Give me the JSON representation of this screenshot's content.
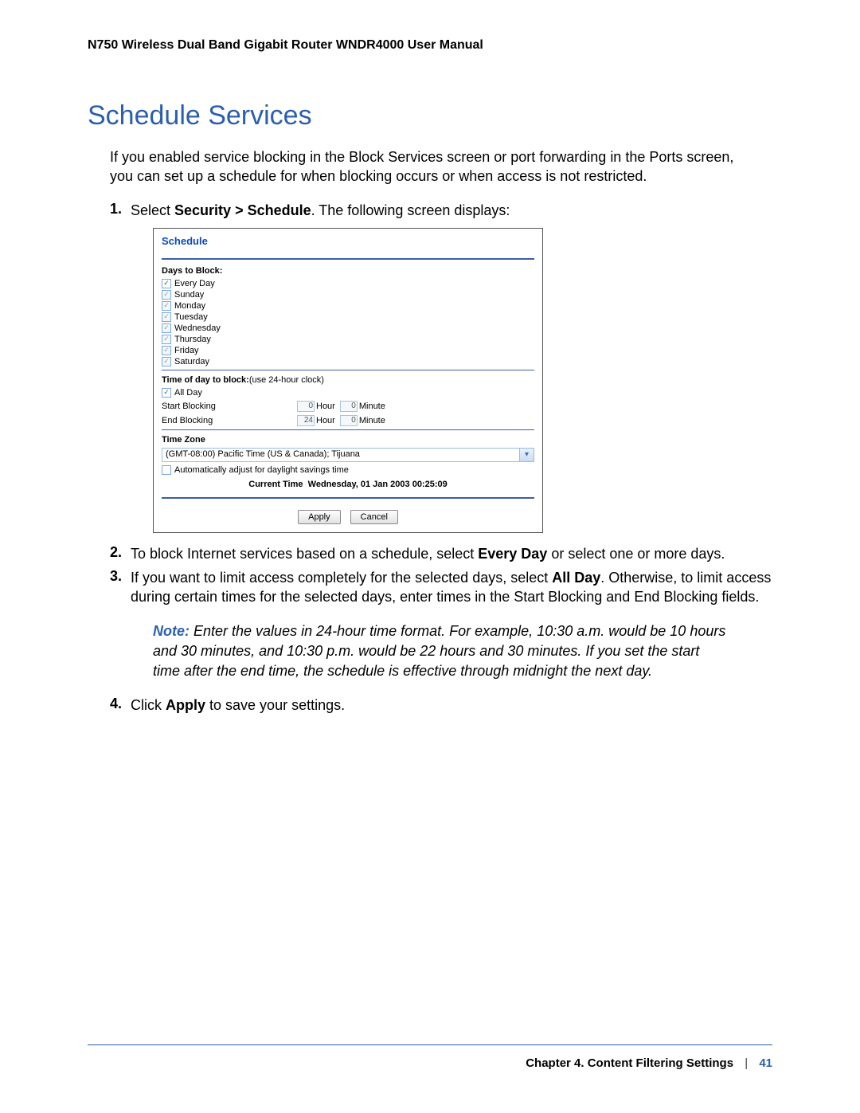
{
  "doc_header": "N750 Wireless Dual Band Gigabit Router WNDR4000 User Manual",
  "section_title": "Schedule Services",
  "intro": "If you enabled service blocking in the Block Services screen or port forwarding in the Ports screen, you can set up a schedule for when blocking occurs or when access is not restricted.",
  "steps": {
    "s1_pre": "Select ",
    "s1_bold": "Security > Schedule",
    "s1_post": ". The following screen displays:",
    "s2_pre": "To block Internet services based on a schedule, select ",
    "s2_bold": "Every Day",
    "s2_post": " or select one or more days.",
    "s3_pre": "If you want to limit access completely for the selected days, select ",
    "s3_bold": "All Day",
    "s3_post": ". Otherwise, to limit access during certain times for the selected days, enter times in the Start Blocking and End Blocking fields.",
    "s4_pre": "Click ",
    "s4_bold": "Apply",
    "s4_post": " to save your settings."
  },
  "note": {
    "label": "Note:",
    "text": "  Enter the values in 24-hour time format. For example, 10:30 a.m. would be 10 hours and 30 minutes, and 10:30 p.m. would be 22 hours and 30 minutes. If you set the start time after the end time, the schedule is effective through midnight the next day."
  },
  "screenshot": {
    "title": "Schedule",
    "days_label": "Days to Block:",
    "days": [
      {
        "label": "Every Day",
        "checked": true,
        "dim": false
      },
      {
        "label": "Sunday",
        "checked": true,
        "dim": true
      },
      {
        "label": "Monday",
        "checked": true,
        "dim": true
      },
      {
        "label": "Tuesday",
        "checked": true,
        "dim": true
      },
      {
        "label": "Wednesday",
        "checked": true,
        "dim": true
      },
      {
        "label": "Thursday",
        "checked": true,
        "dim": true
      },
      {
        "label": "Friday",
        "checked": true,
        "dim": true
      },
      {
        "label": "Saturday",
        "checked": true,
        "dim": true
      }
    ],
    "time_label": "Time of day to block:",
    "time_label_suffix": "(use 24-hour clock)",
    "all_day_label": "All Day",
    "start_label": "Start Blocking",
    "end_label": "End Blocking",
    "hour_label": "Hour",
    "minute_label": "Minute",
    "start_hour": "0",
    "start_min": "0",
    "end_hour": "24",
    "end_min": "0",
    "tz_label": "Time Zone",
    "tz_value": "(GMT-08:00) Pacific Time (US & Canada); Tijuana",
    "dst_label": "Automatically adjust for daylight savings time",
    "current_time_label": "Current Time",
    "current_time_value": "Wednesday, 01 Jan 2003 00:25:09",
    "apply_btn": "Apply",
    "cancel_btn": "Cancel"
  },
  "footer": {
    "chapter": "Chapter 4.  Content Filtering Settings",
    "page": "41"
  },
  "colors": {
    "accent": "#2b5fad"
  }
}
